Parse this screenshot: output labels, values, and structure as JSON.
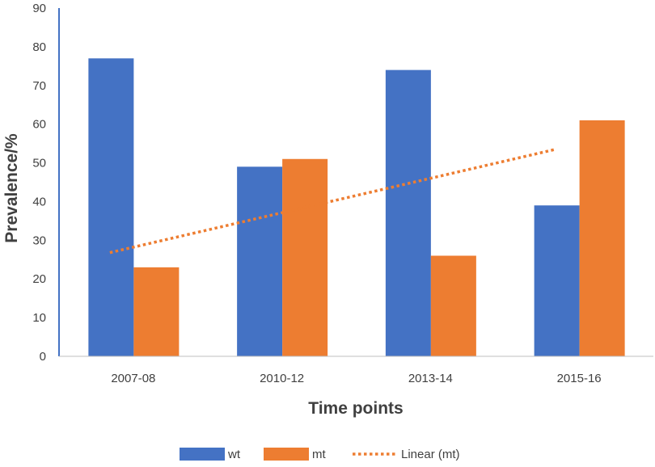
{
  "chart_data": {
    "type": "bar",
    "categories": [
      "2007-08",
      "2010-12",
      "2013-14",
      "2015-16"
    ],
    "series": [
      {
        "name": "wt",
        "values": [
          77,
          49,
          74,
          39
        ],
        "color": "#4472C4"
      },
      {
        "name": "mt",
        "values": [
          23,
          51,
          26,
          61
        ],
        "color": "#ED7D31"
      }
    ],
    "trendline": {
      "name": "Linear (mt)",
      "type": "linear",
      "series": "mt",
      "start": 26.8,
      "end": 53.5,
      "color": "#ED7D31",
      "style": "dotted"
    },
    "xlabel": "Time points",
    "ylabel": "Prevalence/%",
    "ylim": [
      0,
      90
    ],
    "yticks": [
      0,
      10,
      20,
      30,
      40,
      50,
      60,
      70,
      80,
      90
    ],
    "grid": false,
    "legend_position": "bottom"
  }
}
